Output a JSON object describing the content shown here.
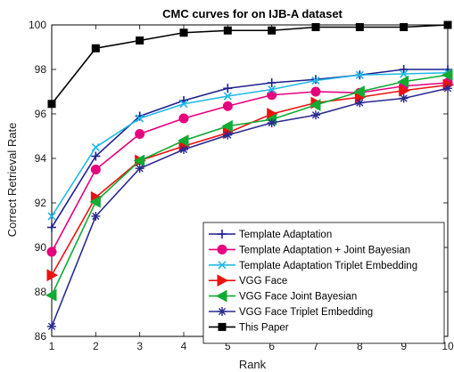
{
  "chart_data": {
    "type": "line",
    "title": "CMC curves for on IJB-A dataset",
    "xlabel": "Rank",
    "ylabel": "Correct Retrieval Rate",
    "xlim": [
      1,
      10
    ],
    "ylim": [
      86,
      100
    ],
    "xticks": [
      1,
      2,
      3,
      4,
      5,
      6,
      7,
      8,
      9,
      10
    ],
    "yticks": [
      86,
      88,
      90,
      92,
      94,
      96,
      98,
      100
    ],
    "grid": false,
    "legend_position": "bottom-right",
    "x": [
      1,
      2,
      3,
      4,
      5,
      6,
      7,
      8,
      9,
      10
    ],
    "series": [
      {
        "name": "Template Adaptation",
        "color": "#1f1f8f",
        "marker": "plus",
        "values": [
          90.9,
          94.1,
          95.9,
          96.6,
          97.15,
          97.4,
          97.55,
          97.75,
          98.0,
          98.0
        ]
      },
      {
        "name": "Template Adaptation + Joint Bayesian",
        "color": "#e6007e",
        "marker": "circle",
        "values": [
          89.8,
          93.5,
          95.1,
          95.8,
          96.35,
          96.85,
          97.0,
          96.95,
          97.25,
          97.4
        ]
      },
      {
        "name": "Template Adaptation Triplet Embedding",
        "color": "#22b8e8",
        "marker": "x",
        "values": [
          91.4,
          94.5,
          95.8,
          96.45,
          96.8,
          97.1,
          97.5,
          97.75,
          97.8,
          97.85
        ]
      },
      {
        "name": "VGG Face",
        "color": "#ee1111",
        "marker": "triangle-right",
        "values": [
          88.75,
          92.25,
          93.9,
          94.55,
          95.15,
          96.0,
          96.5,
          96.75,
          97.05,
          97.3
        ]
      },
      {
        "name": "VGG Face Joint Bayesian",
        "color": "#11aa33",
        "marker": "triangle-left",
        "values": [
          87.85,
          92.05,
          93.9,
          94.8,
          95.45,
          95.75,
          96.4,
          97.0,
          97.45,
          97.75
        ]
      },
      {
        "name": "VGG Face Triplet Embedding",
        "color": "#2a2a90",
        "marker": "asterisk",
        "values": [
          86.45,
          91.4,
          93.55,
          94.4,
          95.05,
          95.6,
          95.95,
          96.5,
          96.7,
          97.15
        ]
      },
      {
        "name": "This Paper",
        "color": "#000000",
        "marker": "square",
        "values": [
          96.45,
          98.95,
          99.3,
          99.65,
          99.75,
          99.75,
          99.9,
          99.9,
          99.9,
          100.0
        ]
      }
    ]
  }
}
